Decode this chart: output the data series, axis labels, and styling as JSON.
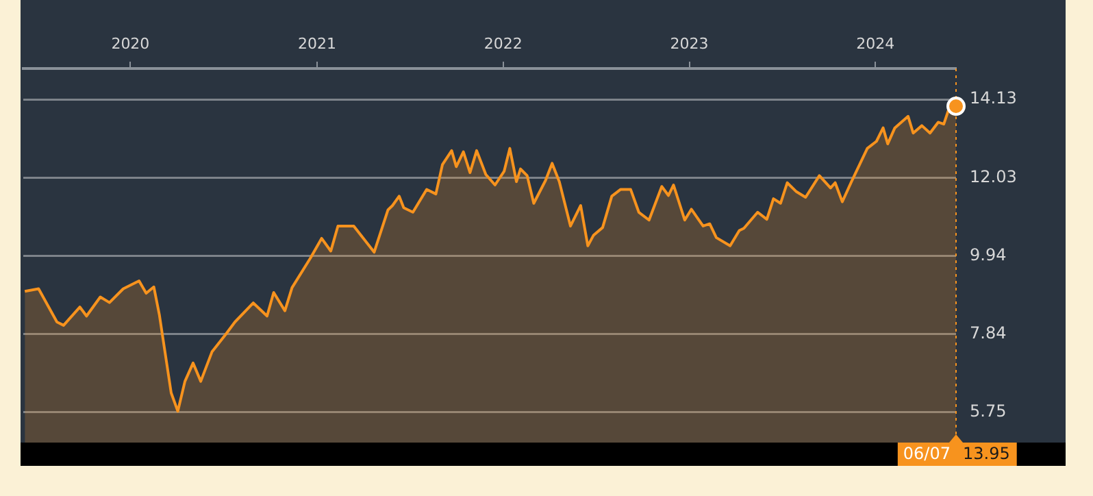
{
  "chart_data": {
    "type": "area",
    "x": [
      "2019-06-08",
      "2019-07-05",
      "2019-08-10",
      "2019-08-23",
      "2019-09-24",
      "2019-10-07",
      "2019-11-03",
      "2019-11-21",
      "2019-12-18",
      "2020-01-18",
      "2020-02-01",
      "2020-02-16",
      "2020-02-27",
      "2020-03-21",
      "2020-04-03",
      "2020-04-17",
      "2020-05-03",
      "2020-05-18",
      "2020-06-09",
      "2020-07-06",
      "2020-07-24",
      "2020-08-29",
      "2020-09-25",
      "2020-10-08",
      "2020-10-30",
      "2020-11-13",
      "2020-12-19",
      "2021-01-10",
      "2021-01-28",
      "2021-02-11",
      "2021-03-14",
      "2021-04-23",
      "2021-05-20",
      "2021-05-29",
      "2021-06-11",
      "2021-06-20",
      "2021-07-08",
      "2021-08-04",
      "2021-08-22",
      "2021-09-04",
      "2021-09-22",
      "2021-10-01",
      "2021-10-15",
      "2021-10-28",
      "2021-11-10",
      "2021-11-28",
      "2021-12-16",
      "2022-01-03",
      "2022-01-14",
      "2022-01-27",
      "2022-02-04",
      "2022-02-17",
      "2022-03-02",
      "2022-03-25",
      "2022-04-07",
      "2022-04-21",
      "2022-05-13",
      "2022-06-02",
      "2022-06-16",
      "2022-06-27",
      "2022-07-15",
      "2022-08-02",
      "2022-08-19",
      "2022-09-08",
      "2022-09-24",
      "2022-10-14",
      "2022-11-08",
      "2022-11-21",
      "2022-12-01",
      "2022-12-23",
      "2023-01-05",
      "2023-01-28",
      "2023-02-10",
      "2023-02-23",
      "2023-03-22",
      "2023-04-09",
      "2023-04-18",
      "2023-05-15",
      "2023-06-02",
      "2023-06-15",
      "2023-06-29",
      "2023-07-12",
      "2023-07-30",
      "2023-08-17",
      "2023-09-13",
      "2023-10-05",
      "2023-10-14",
      "2023-10-28",
      "2023-11-15",
      "2023-12-16",
      "2024-01-03",
      "2024-01-16",
      "2024-01-25",
      "2024-02-08",
      "2024-03-05",
      "2024-03-15",
      "2024-04-01",
      "2024-04-17",
      "2024-05-03",
      "2024-05-14",
      "2024-05-25",
      "2024-06-07"
    ],
    "series": [
      {
        "color": "#f7931e",
        "values": [
          8.99,
          9.06,
          8.17,
          8.08,
          8.57,
          8.33,
          8.84,
          8.69,
          9.06,
          9.27,
          8.94,
          9.11,
          8.35,
          6.27,
          5.78,
          6.58,
          7.07,
          6.58,
          7.37,
          7.84,
          8.17,
          8.68,
          8.33,
          8.96,
          8.47,
          9.09,
          9.88,
          10.41,
          10.07,
          10.74,
          10.74,
          10.04,
          11.17,
          11.29,
          11.54,
          11.23,
          11.11,
          11.72,
          11.6,
          12.39,
          12.76,
          12.33,
          12.73,
          12.17,
          12.76,
          12.12,
          11.84,
          12.21,
          12.82,
          11.93,
          12.27,
          12.09,
          11.35,
          11.96,
          12.42,
          11.93,
          10.74,
          11.29,
          10.21,
          10.49,
          10.7,
          11.54,
          11.72,
          11.72,
          11.11,
          10.9,
          11.8,
          11.56,
          11.84,
          10.9,
          11.19,
          10.74,
          10.8,
          10.43,
          10.21,
          10.62,
          10.68,
          11.11,
          10.92,
          11.47,
          11.35,
          11.9,
          11.66,
          11.51,
          12.09,
          11.76,
          11.9,
          11.39,
          11.93,
          12.82,
          13.01,
          13.37,
          12.94,
          13.37,
          13.68,
          13.23,
          13.43,
          13.23,
          13.52,
          13.47,
          13.92,
          13.95
        ]
      }
    ],
    "xlim": [
      "2019-06-05",
      "2024-06-07"
    ],
    "xticks": [
      {
        "value": "2020-01-01",
        "label": "2020"
      },
      {
        "value": "2021-01-01",
        "label": "2021"
      },
      {
        "value": "2022-01-01",
        "label": "2022"
      },
      {
        "value": "2023-01-01",
        "label": "2023"
      },
      {
        "value": "2024-01-01",
        "label": "2024"
      }
    ],
    "ylim": [
      4.94,
      14.96
    ],
    "yticks": [
      5.75,
      7.84,
      9.94,
      12.03,
      14.13
    ],
    "grid": "y",
    "ref_lines": [
      {
        "axis": "x",
        "value": "2024-06-07",
        "label": "06/07",
        "color": "#f7931e",
        "line_style": "dotted"
      }
    ],
    "annotations": [
      "13.95"
    ]
  }
}
